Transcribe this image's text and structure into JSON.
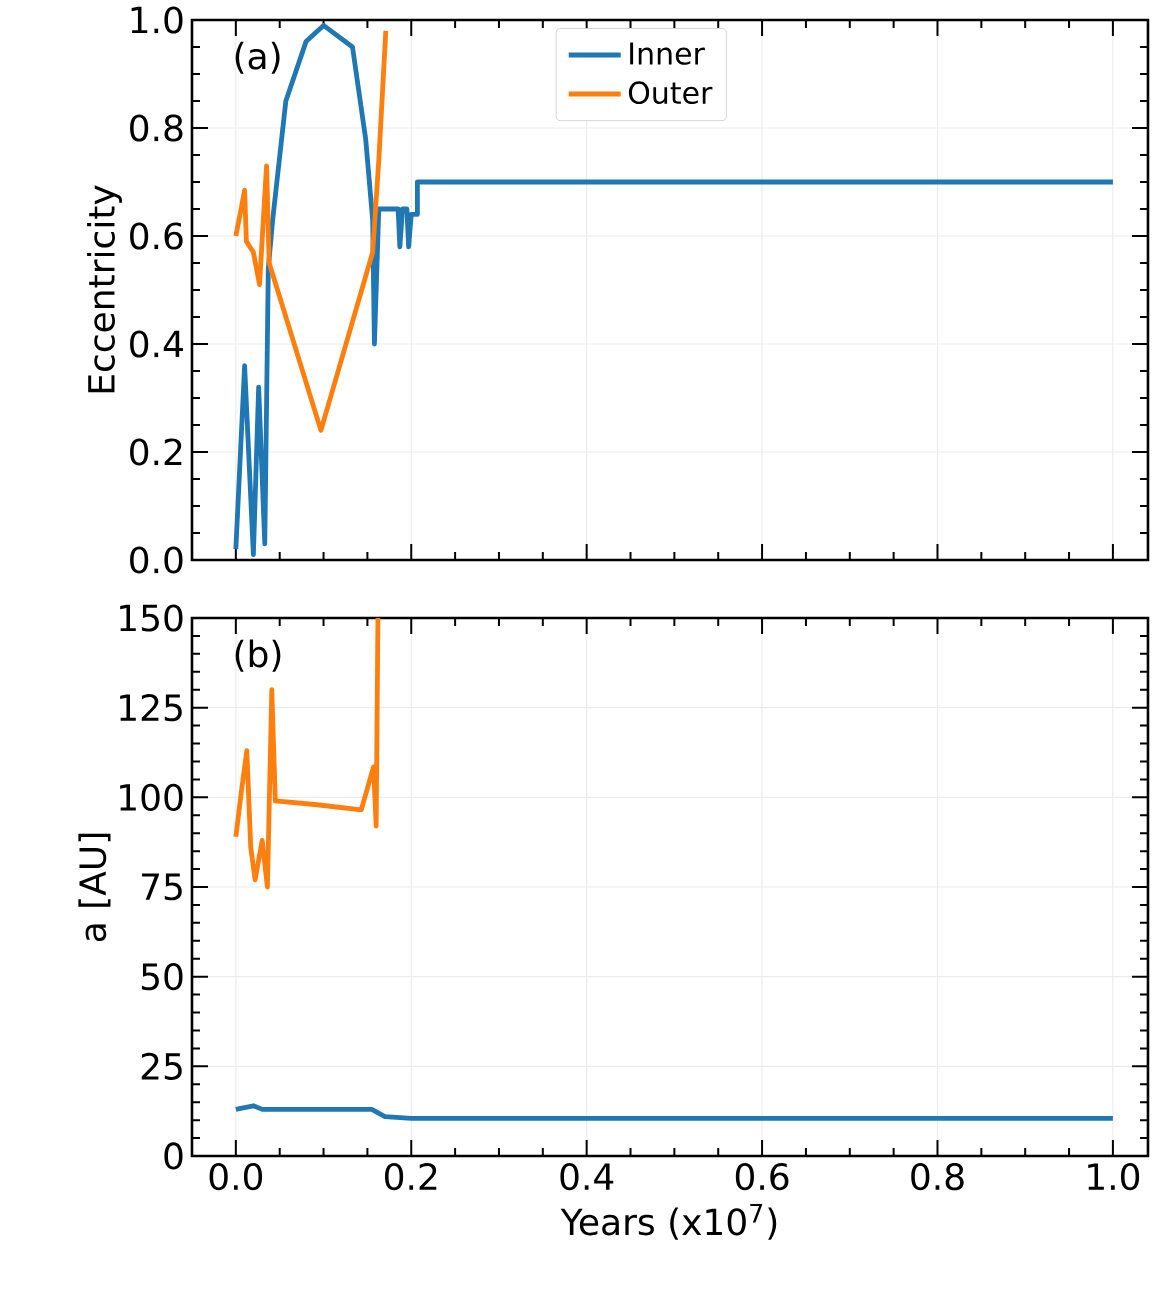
{
  "chart_data": [
    {
      "type": "line",
      "ylabel": "Eccentricity",
      "annotations": [
        "(a)"
      ],
      "grid": true,
      "legend": "top",
      "tick_labels": "y",
      "xlim": [
        -0.05,
        1.04
      ],
      "xticks": [
        0,
        0.2,
        0.4,
        0.6,
        0.8,
        1
      ],
      "ylim": [
        0,
        1
      ],
      "yticks": [
        {
          "value": 0,
          "label": "0.0"
        },
        0.2,
        0.4,
        0.6,
        0.8,
        {
          "value": 1,
          "label": "1.0"
        }
      ],
      "series": [
        {
          "name": "Inner",
          "color": "#1f77b4",
          "x": [
            0,
            0.01,
            0.02,
            0.026,
            0.033,
            0.037,
            0.042,
            0.057,
            0.08,
            0.1,
            0.133,
            0.148,
            0.156,
            0.158,
            0.163,
            0.185,
            0.187,
            0.19,
            0.195,
            0.197,
            0.2,
            0.207,
            0.207,
            1.0
          ],
          "values": [
            0.02,
            0.36,
            0.01,
            0.32,
            0.03,
            0.54,
            0.63,
            0.85,
            0.96,
            0.99,
            0.95,
            0.78,
            0.63,
            0.4,
            0.65,
            0.65,
            0.58,
            0.65,
            0.65,
            0.58,
            0.64,
            0.64,
            0.7,
            0.7
          ]
        },
        {
          "name": "Outer",
          "color": "#ff7f0e",
          "x": [
            0,
            0.006,
            0.01,
            0.012,
            0.02,
            0.027,
            0.035,
            0.038,
            0.097,
            0.156,
            0.163,
            0.171
          ],
          "values": [
            0.6,
            0.65,
            0.685,
            0.59,
            0.57,
            0.51,
            0.73,
            0.55,
            0.24,
            0.57,
            0.74,
            0.98
          ]
        }
      ]
    },
    {
      "type": "line",
      "xlabel": "Years (x10$^{7}$)",
      "ylabel": "a [AU]",
      "annotations": [
        "(b)"
      ],
      "grid": true,
      "xlim": [
        -0.05,
        1.04
      ],
      "xticks": [
        {
          "value": 0,
          "label": "0.0"
        },
        0.2,
        0.4,
        0.6,
        0.8,
        {
          "value": 1,
          "label": "1.0"
        }
      ],
      "ylim": [
        0,
        150
      ],
      "yticks": [
        0,
        25,
        50,
        75,
        100,
        125,
        150
      ],
      "series": [
        {
          "color": "#1f77b4",
          "x": [
            0,
            0.02,
            0.03,
            0.155,
            0.17,
            0.2,
            1.0
          ],
          "values": [
            13,
            14,
            13,
            13,
            11,
            10.5,
            10.5
          ]
        },
        {
          "color": "#ff7f0e",
          "x": [
            0,
            0.006,
            0.0125,
            0.017,
            0.022,
            0.03,
            0.036,
            0.041,
            0.045,
            0.09,
            0.143,
            0.157,
            0.16,
            0.162
          ],
          "values": [
            89,
            101,
            113,
            86,
            77,
            88,
            75,
            130,
            99,
            98,
            96.5,
            108.5,
            92,
            150
          ]
        }
      ]
    }
  ]
}
